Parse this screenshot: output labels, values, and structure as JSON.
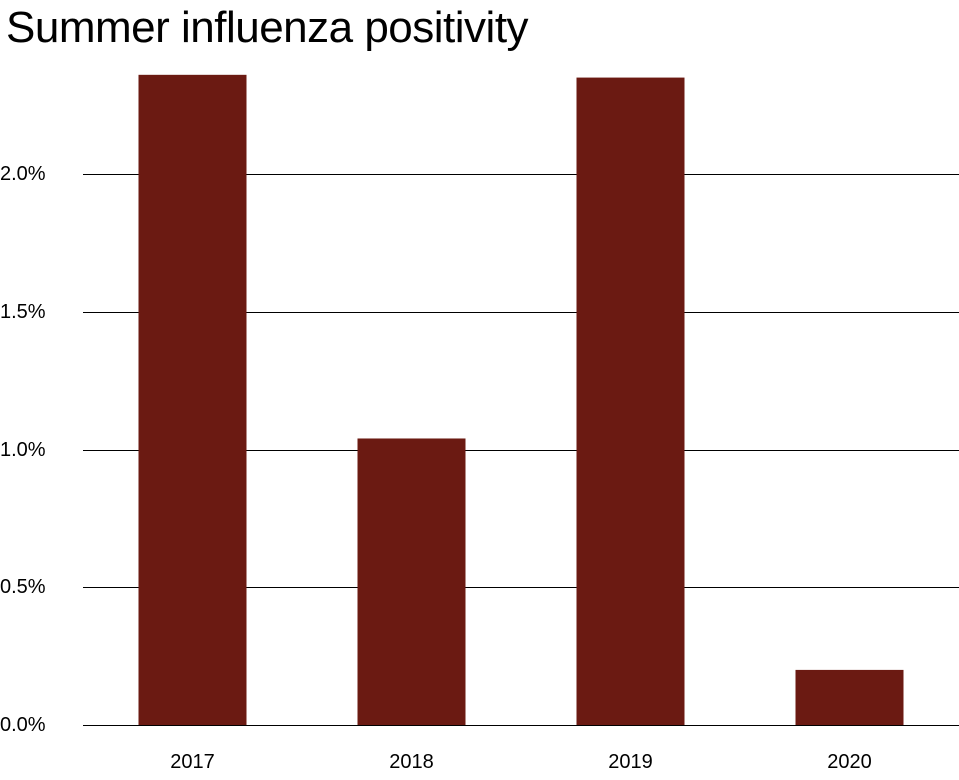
{
  "chart_data": {
    "type": "bar",
    "title": "Summer influenza positivity",
    "xlabel": "",
    "ylabel": "",
    "categories": [
      "2017",
      "2018",
      "2019",
      "2020"
    ],
    "values": [
      2.36,
      1.04,
      2.35,
      0.2
    ],
    "value_unit": "%",
    "ylim": [
      0,
      2.36
    ],
    "yticks": [
      {
        "value": 0.0,
        "label": "0.0%"
      },
      {
        "value": 0.5,
        "label": "0.5%"
      },
      {
        "value": 1.0,
        "label": "1.0%"
      },
      {
        "value": 1.5,
        "label": "1.5%"
      },
      {
        "value": 2.0,
        "label": "2.0%"
      }
    ],
    "grid": true,
    "legend": "none",
    "bar_color": "#6b1a12",
    "grid_color": "#000000"
  }
}
